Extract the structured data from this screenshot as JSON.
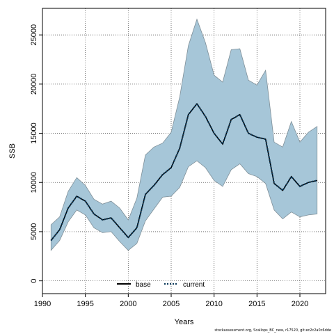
{
  "chart_data": {
    "type": "line",
    "title": "",
    "xlabel": "Years",
    "ylabel": "SSB",
    "xlim": [
      1990,
      2023
    ],
    "ylim": [
      -1300,
      27700
    ],
    "grid": true,
    "x_ticks": [
      1990,
      1995,
      2000,
      2005,
      2010,
      2015,
      2020
    ],
    "y_ticks": [
      0,
      5000,
      10000,
      15000,
      20000,
      25000
    ],
    "x": [
      1991,
      1992,
      1993,
      1994,
      1995,
      1996,
      1997,
      1998,
      1999,
      2000,
      2001,
      2002,
      2003,
      2004,
      2005,
      2006,
      2007,
      2008,
      2009,
      2010,
      2011,
      2012,
      2013,
      2014,
      2015,
      2016,
      2017,
      2018,
      2019,
      2020,
      2021,
      2022
    ],
    "band": {
      "upper": [
        5700,
        6500,
        9100,
        10500,
        9700,
        8300,
        7800,
        8100,
        7400,
        6200,
        8400,
        12800,
        13600,
        14000,
        15100,
        18700,
        23900,
        26600,
        24200,
        20900,
        20200,
        23500,
        23600,
        20400,
        19900,
        21400,
        14100,
        13600,
        16200,
        14100,
        15100,
        15700
      ],
      "lower": [
        3100,
        4100,
        6000,
        7200,
        6700,
        5400,
        4900,
        5000,
        4000,
        3100,
        3800,
        6100,
        7300,
        8500,
        8600,
        9500,
        11600,
        12200,
        11500,
        10200,
        9600,
        11300,
        11900,
        10900,
        10600,
        9900,
        7200,
        6300,
        7000,
        6500,
        6700,
        6800
      ],
      "color": "#a6c6d8"
    },
    "series": [
      {
        "name": "base",
        "style": "solid",
        "color": "#000000",
        "values": [
          4100,
          5200,
          7400,
          8600,
          8100,
          6800,
          6200,
          6400,
          5400,
          4400,
          5400,
          8800,
          9700,
          10800,
          11500,
          13500,
          16900,
          18000,
          16700,
          15000,
          13900,
          16400,
          16900,
          15000,
          14600,
          14400,
          9900,
          9200,
          10600,
          9600,
          10000,
          10200
        ]
      },
      {
        "name": "current",
        "style": "dotted",
        "color": "#0d3a5a",
        "values": [
          4100,
          5200,
          7400,
          8600,
          8100,
          6800,
          6200,
          6400,
          5400,
          4400,
          5400,
          8800,
          9700,
          10800,
          11500,
          13500,
          16900,
          18000,
          16700,
          15000,
          13900,
          16400,
          16900,
          15000,
          14600,
          14400,
          9900,
          9200,
          10600,
          9600,
          10000,
          10200
        ]
      }
    ],
    "legend": {
      "placement": "bottom-center"
    }
  },
  "footer_text": "stockassessment.org, Scallops_BC_new, r17520, git:ec2c2a0c6dde"
}
